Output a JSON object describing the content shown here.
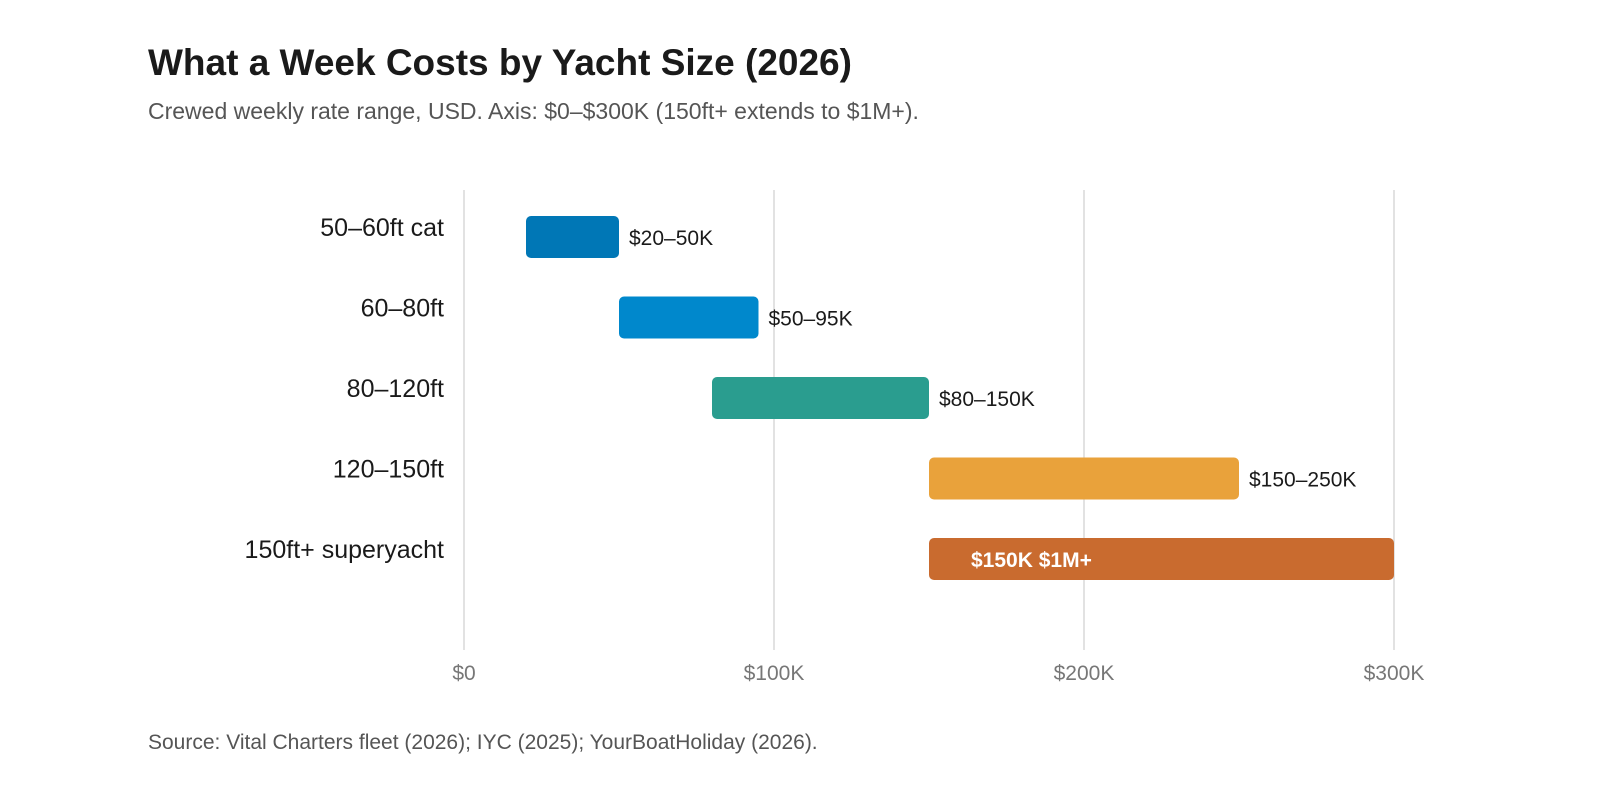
{
  "header": {
    "title": "What a Week Costs by Yacht Size (2026)",
    "subtitle": "Crewed weekly rate range, USD. Axis: $0–$300K (150ft+ extends to $1M+)."
  },
  "footer": {
    "source": "Source: Vital Charters fleet (2026); IYC (2025); YourBoatHoliday (2026)."
  },
  "chart_data": {
    "type": "bar",
    "orientation": "horizontal",
    "bar_style": "floating-range",
    "title": "What a Week Costs by Yacht Size (2026)",
    "subtitle": "Crewed weekly rate range, USD. Axis: $0–$300K (150ft+ extends to $1M+).",
    "xlabel": "",
    "ylabel": "",
    "xlim": [
      0,
      300000
    ],
    "x_ticks": [
      0,
      100000,
      200000,
      300000
    ],
    "x_tick_labels": [
      "$0",
      "$100K",
      "$200K",
      "$300K"
    ],
    "grid": "vertical",
    "legend": "none",
    "categories": [
      "50–60ft cat",
      "60–80ft",
      "80–120ft",
      "120–150ft",
      "150ft+ superyacht"
    ],
    "ranges": [
      {
        "low": 20000,
        "high": 50000,
        "label": "$20–50K",
        "color": "#0077b6",
        "label_position": "outside"
      },
      {
        "low": 50000,
        "high": 95000,
        "label": "$50–95K",
        "color": "#0088cc",
        "label_position": "outside"
      },
      {
        "low": 80000,
        "high": 150000,
        "label": "$80–150K",
        "color": "#2a9d8f",
        "label_position": "outside"
      },
      {
        "low": 150000,
        "high": 250000,
        "label": "$150–250K",
        "color": "#e9a23b",
        "label_position": "outside"
      },
      {
        "low": 150000,
        "high": 1000000,
        "label": "$150K  $1M+",
        "color": "#c96b2f",
        "label_position": "inside",
        "clipped_at_axis_max": true
      }
    ],
    "source": "Source: Vital Charters fleet (2026); IYC (2025); YourBoatHoliday (2026)."
  }
}
